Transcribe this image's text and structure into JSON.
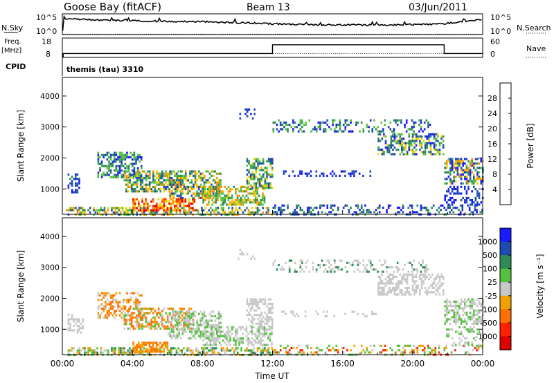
{
  "header": {
    "station": "Goose Bay (fitACF)",
    "beam": "Beam 13",
    "date": "03/Jun/2011"
  },
  "chart_data": [
    {
      "type": "line",
      "panel": "noise",
      "left_label": "N.Sky",
      "right_label": "N.Search",
      "left_ticks": [
        "10^5",
        "10^0"
      ],
      "right_ticks": [
        "10^5",
        "10^0"
      ],
      "x_hours": [
        0,
        0.05,
        0.1,
        1,
        2,
        3,
        4,
        5,
        6,
        7,
        8,
        9,
        10,
        11,
        12,
        13,
        14,
        15,
        16,
        17,
        18,
        19,
        20,
        21,
        21.8,
        22,
        23,
        24
      ],
      "sky_level": [
        0.0,
        0.55,
        0.72,
        0.75,
        0.7,
        0.68,
        0.66,
        0.65,
        0.64,
        0.63,
        0.62,
        0.6,
        0.58,
        0.55,
        0.52,
        0.5,
        0.48,
        0.47,
        0.47,
        0.46,
        0.46,
        0.47,
        0.48,
        0.5,
        0.5,
        0.55,
        0.65,
        0.72
      ]
    },
    {
      "type": "line",
      "panel": "frequency",
      "left_label_top": "Freq.",
      "left_label_unit": "[MHz]",
      "right_label": "Nave",
      "left_ticks": [
        "18",
        "8"
      ],
      "right_ticks": [
        "60",
        "0"
      ],
      "freq_segments": [
        {
          "from": 0.05,
          "to": 12.0,
          "mhz": 10.0
        },
        {
          "from": 12.0,
          "to": 21.8,
          "mhz": 14.5
        },
        {
          "from": 21.8,
          "to": 24.0,
          "mhz": 10.0
        }
      ],
      "nave_level": 12
    },
    {
      "type": "table",
      "panel": "cpid",
      "label": "CPID",
      "program": "themis (tau) 3310"
    },
    {
      "type": "heatmap",
      "panel": "power",
      "ylabel": "Slant Range [km]",
      "xlim_hours": [
        0,
        24
      ],
      "ylim": [
        180,
        4600
      ],
      "yticks": [
        1000,
        2000,
        3000,
        4000
      ],
      "colorbar_label": "Power [dB]",
      "colorbar_ticks": [
        "4",
        "8",
        "12",
        "16",
        "20",
        "24",
        "28"
      ],
      "colors": [
        "#1a1aff",
        "#1e4bb0",
        "#2e8b57",
        "#56c040",
        "#f0d000",
        "#ff9000",
        "#ff3a00",
        "#e00000"
      ],
      "regions": [
        {
          "t0": 0.2,
          "t1": 12.0,
          "r0": 180,
          "r1": 420,
          "levels": [
            1,
            2,
            3,
            4,
            5
          ],
          "density": 0.55
        },
        {
          "t0": 4.0,
          "t1": 7.5,
          "r0": 300,
          "r1": 700,
          "levels": [
            4,
            5,
            6,
            7
          ],
          "density": 0.6
        },
        {
          "t0": 12.0,
          "t1": 24.0,
          "r0": 180,
          "r1": 500,
          "levels": [
            0,
            1,
            2
          ],
          "density": 0.35
        },
        {
          "t0": 0.3,
          "t1": 1.0,
          "r0": 900,
          "r1": 1500,
          "levels": [
            0,
            1,
            2
          ],
          "density": 0.5
        },
        {
          "t0": 2.0,
          "t1": 4.5,
          "r0": 1400,
          "r1": 2200,
          "levels": [
            0,
            1,
            2,
            3
          ],
          "density": 0.55
        },
        {
          "t0": 3.5,
          "t1": 7.0,
          "r0": 900,
          "r1": 1600,
          "levels": [
            1,
            2,
            3,
            4,
            5
          ],
          "density": 0.6
        },
        {
          "t0": 6.0,
          "t1": 9.0,
          "r0": 700,
          "r1": 1600,
          "levels": [
            1,
            2,
            3,
            4,
            5
          ],
          "density": 0.55
        },
        {
          "t0": 8.0,
          "t1": 11.5,
          "r0": 500,
          "r1": 1100,
          "levels": [
            2,
            3,
            4,
            5
          ],
          "density": 0.6
        },
        {
          "t0": 10.5,
          "t1": 12.0,
          "r0": 1000,
          "r1": 2000,
          "levels": [
            1,
            2,
            3,
            4
          ],
          "density": 0.5
        },
        {
          "t0": 12.5,
          "t1": 18.0,
          "r0": 1450,
          "r1": 1600,
          "levels": [
            0,
            1
          ],
          "density": 0.25
        },
        {
          "t0": 12.0,
          "t1": 21.0,
          "r0": 2850,
          "r1": 3250,
          "levels": [
            0,
            1,
            2,
            3
          ],
          "density": 0.3
        },
        {
          "t0": 18.0,
          "t1": 21.8,
          "r0": 2100,
          "r1": 2800,
          "levels": [
            0,
            1,
            2,
            3,
            4
          ],
          "density": 0.5
        },
        {
          "t0": 21.8,
          "t1": 24.0,
          "r0": 1200,
          "r1": 2000,
          "levels": [
            0,
            1,
            2,
            3,
            4,
            5
          ],
          "density": 0.55
        },
        {
          "t0": 21.8,
          "t1": 24.0,
          "r0": 500,
          "r1": 1100,
          "levels": [
            0,
            1
          ],
          "density": 0.35
        },
        {
          "t0": 10.0,
          "t1": 11.0,
          "r0": 3300,
          "r1": 3600,
          "levels": [
            0,
            1
          ],
          "density": 0.2
        }
      ]
    },
    {
      "type": "heatmap",
      "panel": "velocity",
      "ylabel": "Slant Range [km]",
      "xlim_hours": [
        0,
        24
      ],
      "ylim": [
        180,
        4600
      ],
      "yticks": [
        1000,
        2000,
        3000,
        4000
      ],
      "xticks": [
        "00:00",
        "04:00",
        "08:00",
        "12:00",
        "16:00",
        "20:00",
        "00:00"
      ],
      "xlabel": "Time UT",
      "colorbar_label": "Velocity [m s⁻¹]",
      "colorbar_ticks": [
        "1000",
        "500",
        "100",
        "25",
        "-25",
        "-100",
        "-500",
        "-1000"
      ],
      "colors": [
        "#1a1aff",
        "#1e4bb0",
        "#2e8b57",
        "#56c040",
        "#c8c8c8",
        "#f0a000",
        "#ff7000",
        "#ff2000",
        "#e00000"
      ],
      "regions": [
        {
          "t0": 0.2,
          "t1": 12.0,
          "r0": 180,
          "r1": 420,
          "levels": [
            2,
            3,
            4,
            5
          ],
          "density": 0.5
        },
        {
          "t0": 4.0,
          "t1": 6.0,
          "r0": 300,
          "r1": 600,
          "levels": [
            5,
            6
          ],
          "density": 0.6
        },
        {
          "t0": 12.0,
          "t1": 24.0,
          "r0": 180,
          "r1": 500,
          "levels": [
            3,
            4,
            5,
            7
          ],
          "density": 0.3
        },
        {
          "t0": 0.3,
          "t1": 1.2,
          "r0": 900,
          "r1": 1500,
          "levels": [
            4
          ],
          "density": 0.45
        },
        {
          "t0": 2.0,
          "t1": 4.5,
          "r0": 1400,
          "r1": 2200,
          "levels": [
            4,
            5,
            6
          ],
          "density": 0.5
        },
        {
          "t0": 3.5,
          "t1": 7.5,
          "r0": 1000,
          "r1": 1700,
          "levels": [
            5,
            6,
            6,
            4,
            3
          ],
          "density": 0.55
        },
        {
          "t0": 6.0,
          "t1": 9.0,
          "r0": 700,
          "r1": 1600,
          "levels": [
            3,
            4,
            4
          ],
          "density": 0.5
        },
        {
          "t0": 8.0,
          "t1": 12.0,
          "r0": 500,
          "r1": 1100,
          "levels": [
            4,
            4,
            3
          ],
          "density": 0.55
        },
        {
          "t0": 10.5,
          "t1": 12.0,
          "r0": 1000,
          "r1": 2000,
          "levels": [
            4,
            4
          ],
          "density": 0.55
        },
        {
          "t0": 12.5,
          "t1": 18.0,
          "r0": 1450,
          "r1": 1600,
          "levels": [
            4
          ],
          "density": 0.2
        },
        {
          "t0": 12.0,
          "t1": 21.0,
          "r0": 2850,
          "r1": 3250,
          "levels": [
            4,
            4,
            2
          ],
          "density": 0.3
        },
        {
          "t0": 18.0,
          "t1": 21.8,
          "r0": 2100,
          "r1": 2800,
          "levels": [
            4
          ],
          "density": 0.5
        },
        {
          "t0": 21.8,
          "t1": 24.0,
          "r0": 1200,
          "r1": 2000,
          "levels": [
            4,
            4,
            3
          ],
          "density": 0.5
        },
        {
          "t0": 21.8,
          "t1": 24.0,
          "r0": 500,
          "r1": 1100,
          "levels": [
            4,
            3
          ],
          "density": 0.3
        },
        {
          "t0": 10.0,
          "t1": 11.0,
          "r0": 3300,
          "r1": 3600,
          "levels": [
            4
          ],
          "density": 0.2
        }
      ]
    }
  ]
}
